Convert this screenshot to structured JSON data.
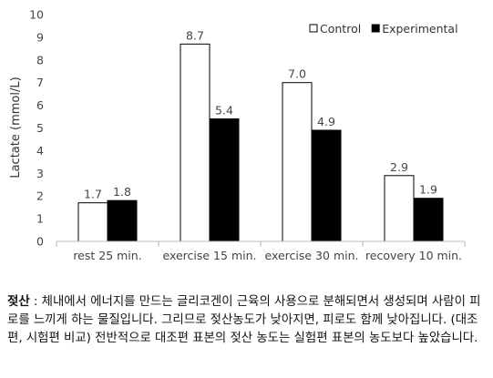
{
  "chart_data": {
    "type": "bar",
    "title": "",
    "xlabel": "",
    "ylabel": "Lactate (mmol/L)",
    "ylim": [
      0,
      10
    ],
    "yticks": [
      "0",
      "1",
      "2",
      "3",
      "4",
      "5",
      "6",
      "7",
      "8",
      "9",
      "10"
    ],
    "grid": false,
    "legend_position": "top-right",
    "categories": [
      "rest 25 min.",
      "exercise 15 min.",
      "exercise 30 min.",
      "recovery 10 min."
    ],
    "series": [
      {
        "name": "Control",
        "values": [
          1.7,
          8.7,
          7.0,
          2.9
        ],
        "labels": [
          "1.7",
          "8.7",
          "7.0",
          "2.9"
        ],
        "color": "#ffffff"
      },
      {
        "name": "Experimental",
        "values": [
          1.8,
          5.4,
          4.9,
          1.9
        ],
        "labels": [
          "1.8",
          "5.4",
          "4.9",
          "1.9"
        ],
        "color": "#000000"
      }
    ]
  },
  "caption": {
    "term": "젖산",
    "body": " : 체내에서 에너지를 만드는 글리코겐이 근육의 사용으로 분해되면서 생성되며 사람이 피로를 느끼게 하는 물질입니다. 그리므로 젖산농도가 낮아지면, 피로도 함께 낮아집니다. (대조편, 시험편 비교) 전반적으로 대조편 표본의 젖산 농도는 실험편 표본의 농도보다 높았습니다."
  }
}
